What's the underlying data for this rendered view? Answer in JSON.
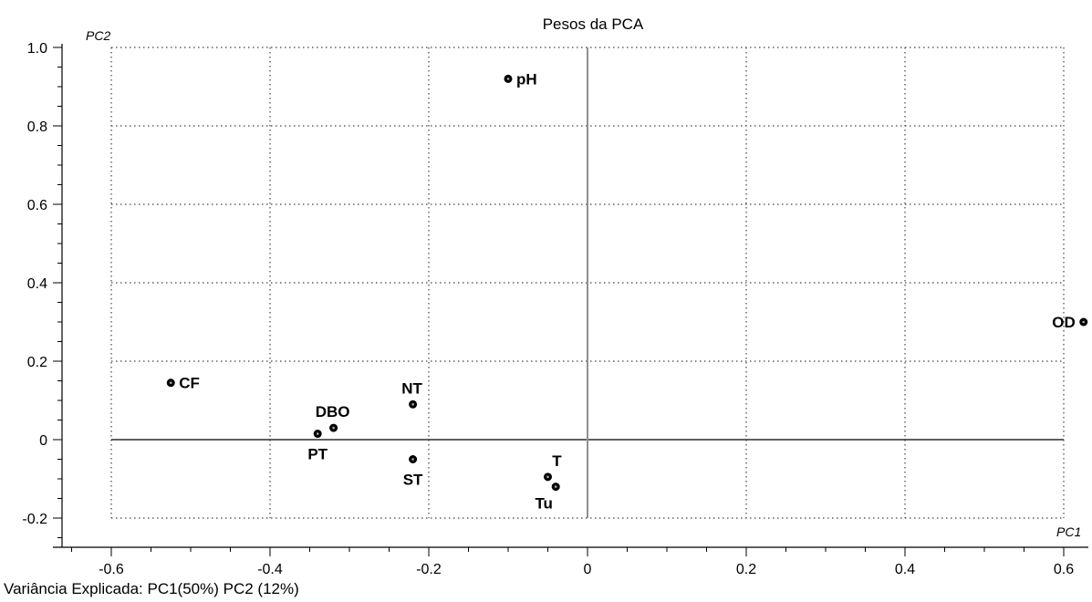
{
  "chart_data": {
    "type": "scatter",
    "title": "Pesos da PCA",
    "xlabel": "PC1",
    "ylabel": "PC2",
    "xlim": [
      -0.68,
      0.64
    ],
    "ylim": [
      -0.2,
      1.0
    ],
    "x_ticks": [
      -0.6,
      -0.4,
      -0.2,
      0,
      0.2,
      0.4,
      0.6
    ],
    "x_tick_labels": [
      "-0.6",
      "-0.4",
      "-0.2",
      "0",
      "0.2",
      "0.4",
      "0.6"
    ],
    "y_ticks": [
      -0.2,
      0,
      0.2,
      0.4,
      0.6,
      0.8,
      1.0
    ],
    "y_tick_labels": [
      "-0.2",
      "0",
      "0.2",
      "0.4",
      "0.6",
      "0.8",
      "1.0"
    ],
    "grid": true,
    "points": [
      {
        "label": "pH",
        "x": -0.1,
        "y": 0.92,
        "label_pos": "right"
      },
      {
        "label": "OD",
        "x": 0.625,
        "y": 0.3,
        "label_pos": "left"
      },
      {
        "label": "CF",
        "x": -0.525,
        "y": 0.145,
        "label_pos": "right"
      },
      {
        "label": "NT",
        "x": -0.22,
        "y": 0.09,
        "label_pos": "above"
      },
      {
        "label": "DBO",
        "x": -0.32,
        "y": 0.03,
        "label_pos": "above"
      },
      {
        "label": "PT",
        "x": -0.34,
        "y": 0.015,
        "label_pos": "below"
      },
      {
        "label": "ST",
        "x": -0.22,
        "y": -0.05,
        "label_pos": "below"
      },
      {
        "label": "T",
        "x": -0.05,
        "y": -0.095,
        "label_pos": "above-right"
      },
      {
        "label": "Tu",
        "x": -0.04,
        "y": -0.12,
        "label_pos": "below-left"
      }
    ]
  },
  "footer": {
    "text": "Variância Explicada: PC1(50%)   PC2 (12%)"
  }
}
